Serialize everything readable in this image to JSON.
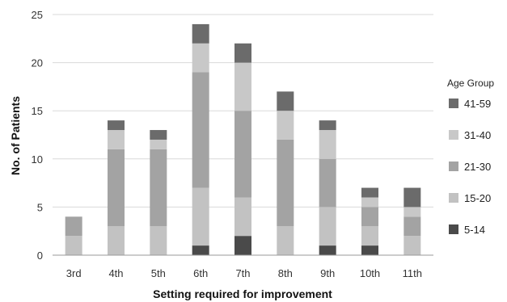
{
  "chart_data": {
    "type": "bar",
    "stacked": true,
    "categories": [
      "3rd",
      "4th",
      "5th",
      "6th",
      "7th",
      "8th",
      "9th",
      "10th",
      "11th"
    ],
    "series": [
      {
        "name": "5-14",
        "color": "#4a4a4a",
        "values": [
          0,
          0,
          0,
          1,
          2,
          0,
          1,
          1,
          0
        ]
      },
      {
        "name": "15-20",
        "color": "#c2c2c2",
        "values": [
          2,
          3,
          3,
          6,
          4,
          3,
          4,
          2,
          2
        ]
      },
      {
        "name": "21-30",
        "color": "#a3a3a3",
        "values": [
          2,
          8,
          8,
          12,
          9,
          9,
          5,
          2,
          2
        ]
      },
      {
        "name": "31-40",
        "color": "#c8c8c8",
        "values": [
          0,
          2,
          1,
          3,
          5,
          3,
          3,
          1,
          1
        ]
      },
      {
        "name": "41-59",
        "color": "#6b6b6b",
        "values": [
          0,
          1,
          1,
          2,
          2,
          2,
          1,
          1,
          2
        ]
      }
    ],
    "xlabel": "Setting required for improvement",
    "ylabel": "No. of Patients",
    "ylim": [
      0,
      25
    ],
    "yticks": [
      "0",
      "5",
      "10",
      "15",
      "20",
      "25"
    ],
    "grid": true,
    "legend": {
      "title": "Age Group",
      "position": "right",
      "order": [
        "41-59",
        "31-40",
        "21-30",
        "15-20",
        "5-14"
      ]
    }
  }
}
